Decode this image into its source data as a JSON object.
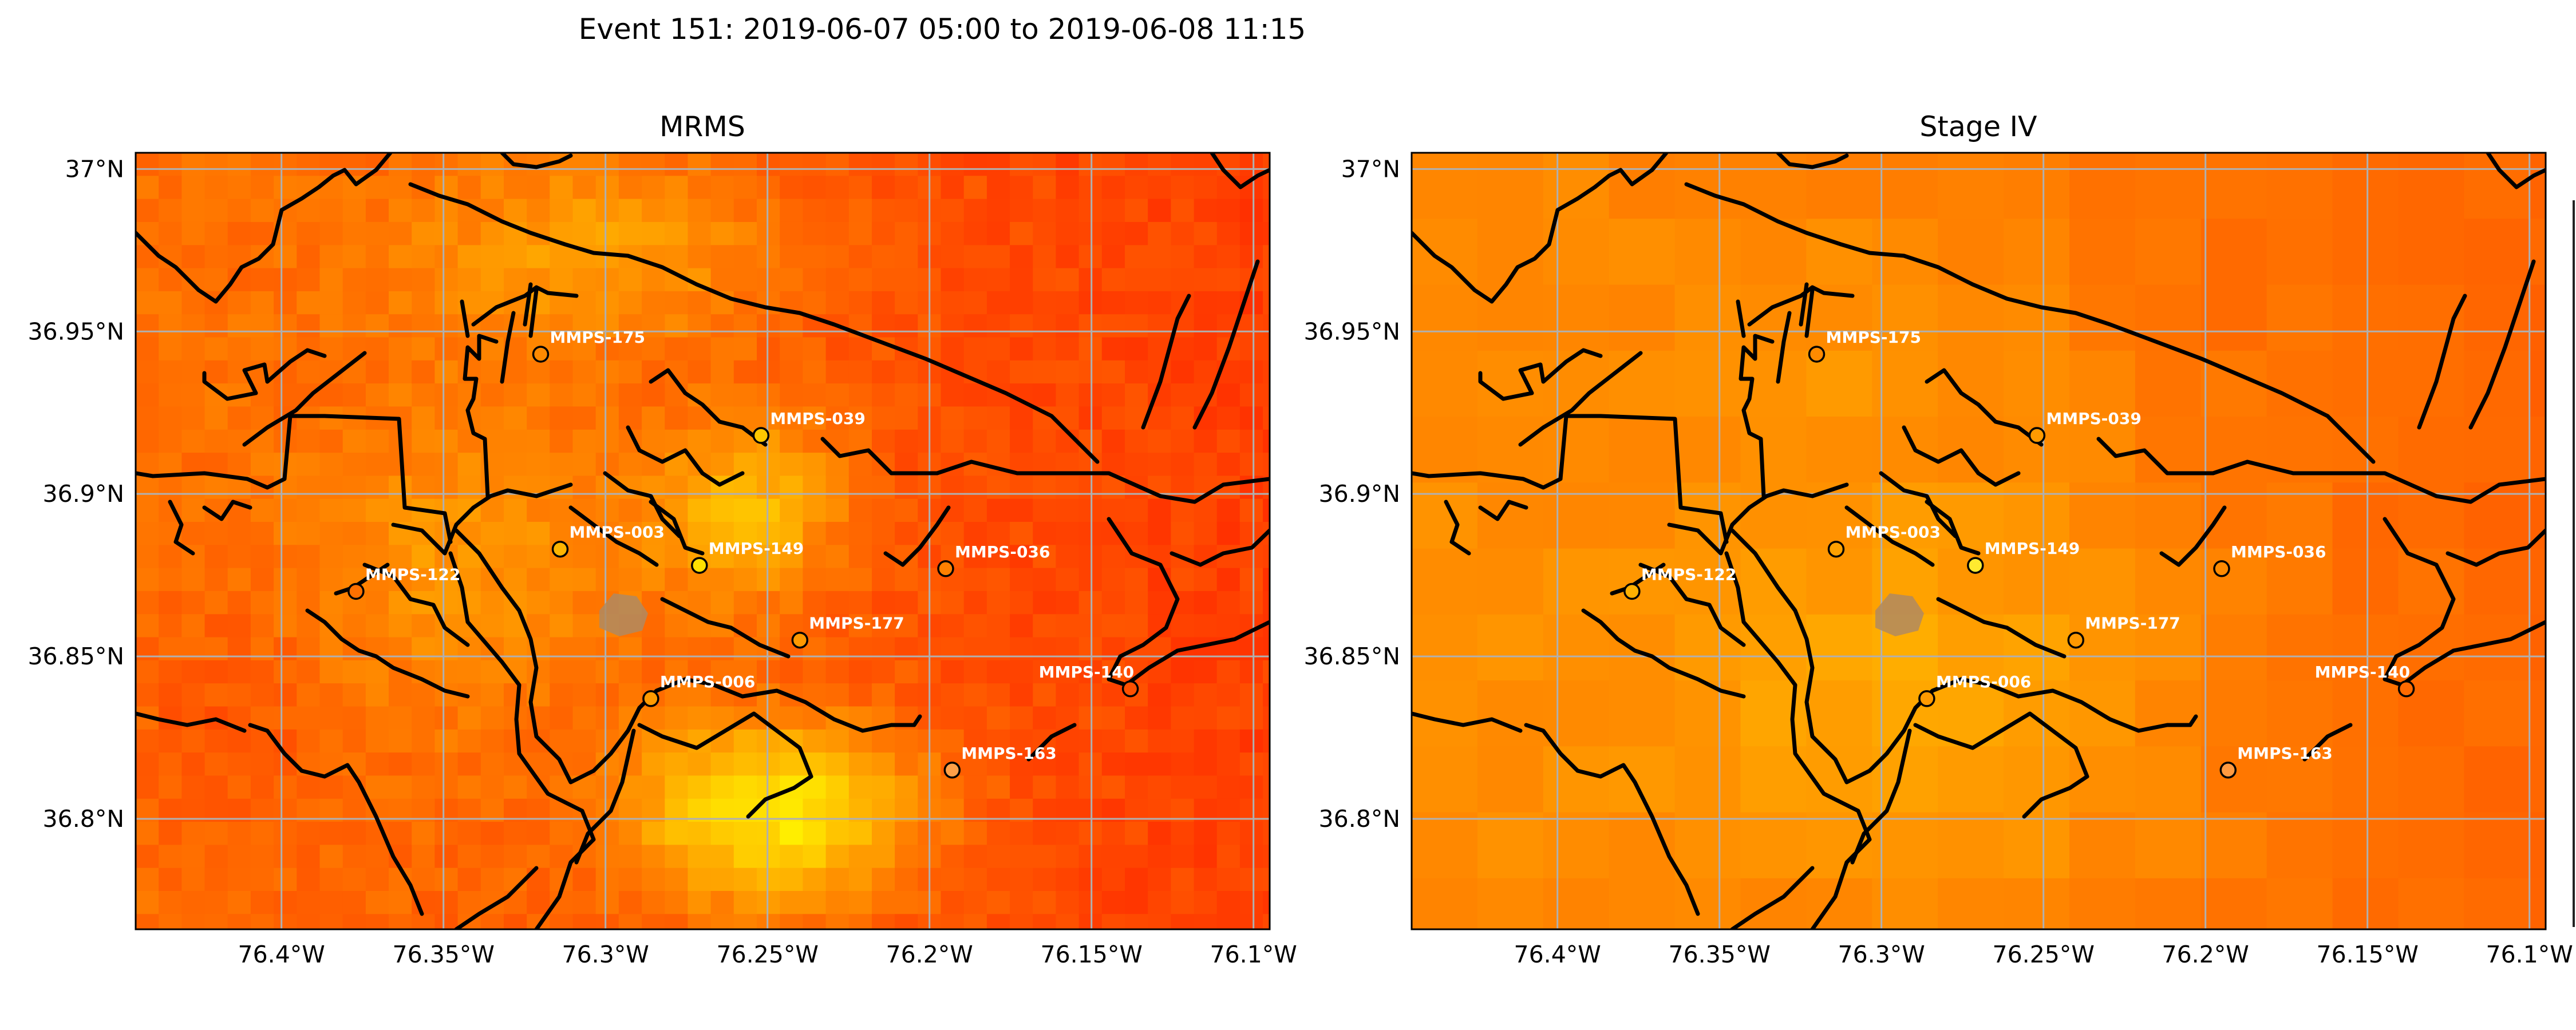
{
  "suptitle": "Event 151: 2019-06-07 05:00 to 2019-06-08 11:15",
  "chart_data": {
    "type": "heatmap",
    "map_extent": {
      "lon": [
        -76.445,
        -76.095
      ],
      "lat": [
        36.766,
        37.005
      ]
    },
    "x_ticks": [
      {
        "lon": -76.4,
        "label": "76.4°W"
      },
      {
        "lon": -76.35,
        "label": "76.35°W"
      },
      {
        "lon": -76.3,
        "label": "76.3°W"
      },
      {
        "lon": -76.25,
        "label": "76.25°W"
      },
      {
        "lon": -76.2,
        "label": "76.2°W"
      },
      {
        "lon": -76.15,
        "label": "76.15°W"
      },
      {
        "lon": -76.1,
        "label": "76.1°W"
      }
    ],
    "y_ticks": [
      {
        "lat": 37.0,
        "label": "37°N"
      },
      {
        "lat": 36.95,
        "label": "36.95°N"
      },
      {
        "lat": 36.9,
        "label": "36.9°N"
      },
      {
        "lat": 36.85,
        "label": "36.85°N"
      },
      {
        "lat": 36.8,
        "label": "36.8°N"
      }
    ],
    "grid": true,
    "colormap": "autumn (red → orange → yellow → yellow-green)",
    "panels": [
      {
        "title": "MRMS",
        "field_style": "fine-resolution mosaic, yellow maxima around 76.25°W 36.80°N"
      },
      {
        "title": "Stage IV",
        "field_style": "coarse-resolution mosaic, mostly orange"
      }
    ],
    "stations": [
      {
        "id": "MMPS-175",
        "lon": -76.32,
        "lat": 36.943,
        "color_mrms": "#ff8a00",
        "color_stage4": "#ff8a00"
      },
      {
        "id": "MMPS-039",
        "lon": -76.252,
        "lat": 36.918,
        "color_mrms": "#ffc800",
        "color_stage4": "#ff9a00"
      },
      {
        "id": "MMPS-003",
        "lon": -76.314,
        "lat": 36.883,
        "color_mrms": "#ffb400",
        "color_stage4": "#ffa000"
      },
      {
        "id": "MMPS-149",
        "lon": -76.271,
        "lat": 36.878,
        "color_mrms": "#ffe000",
        "color_stage4": "#ffea30"
      },
      {
        "id": "MMPS-122",
        "lon": -76.377,
        "lat": 36.87,
        "color_mrms": "#ff7000",
        "color_stage4": "#ffb000"
      },
      {
        "id": "MMPS-036",
        "lon": -76.195,
        "lat": 36.877,
        "color_mrms": "#ff8000",
        "color_stage4": "#ff8a00"
      },
      {
        "id": "MMPS-177",
        "lon": -76.24,
        "lat": 36.855,
        "color_mrms": "#ff9800",
        "color_stage4": "#ff9800"
      },
      {
        "id": "MMPS-140",
        "lon": -76.138,
        "lat": 36.84,
        "color_mrms": "#ff5000",
        "color_stage4": "#ff6a00"
      },
      {
        "id": "MMPS-006",
        "lon": -76.286,
        "lat": 36.837,
        "color_mrms": "#ff9a00",
        "color_stage4": "#ff9a00"
      },
      {
        "id": "MMPS-163",
        "lon": -76.193,
        "lat": 36.815,
        "color_mrms": "#ffa048",
        "color_stage4": "#ff9a40"
      }
    ]
  },
  "colors": {
    "grid": "#b0b0b0",
    "coast": "#000000",
    "landmark": "#b08a60"
  }
}
